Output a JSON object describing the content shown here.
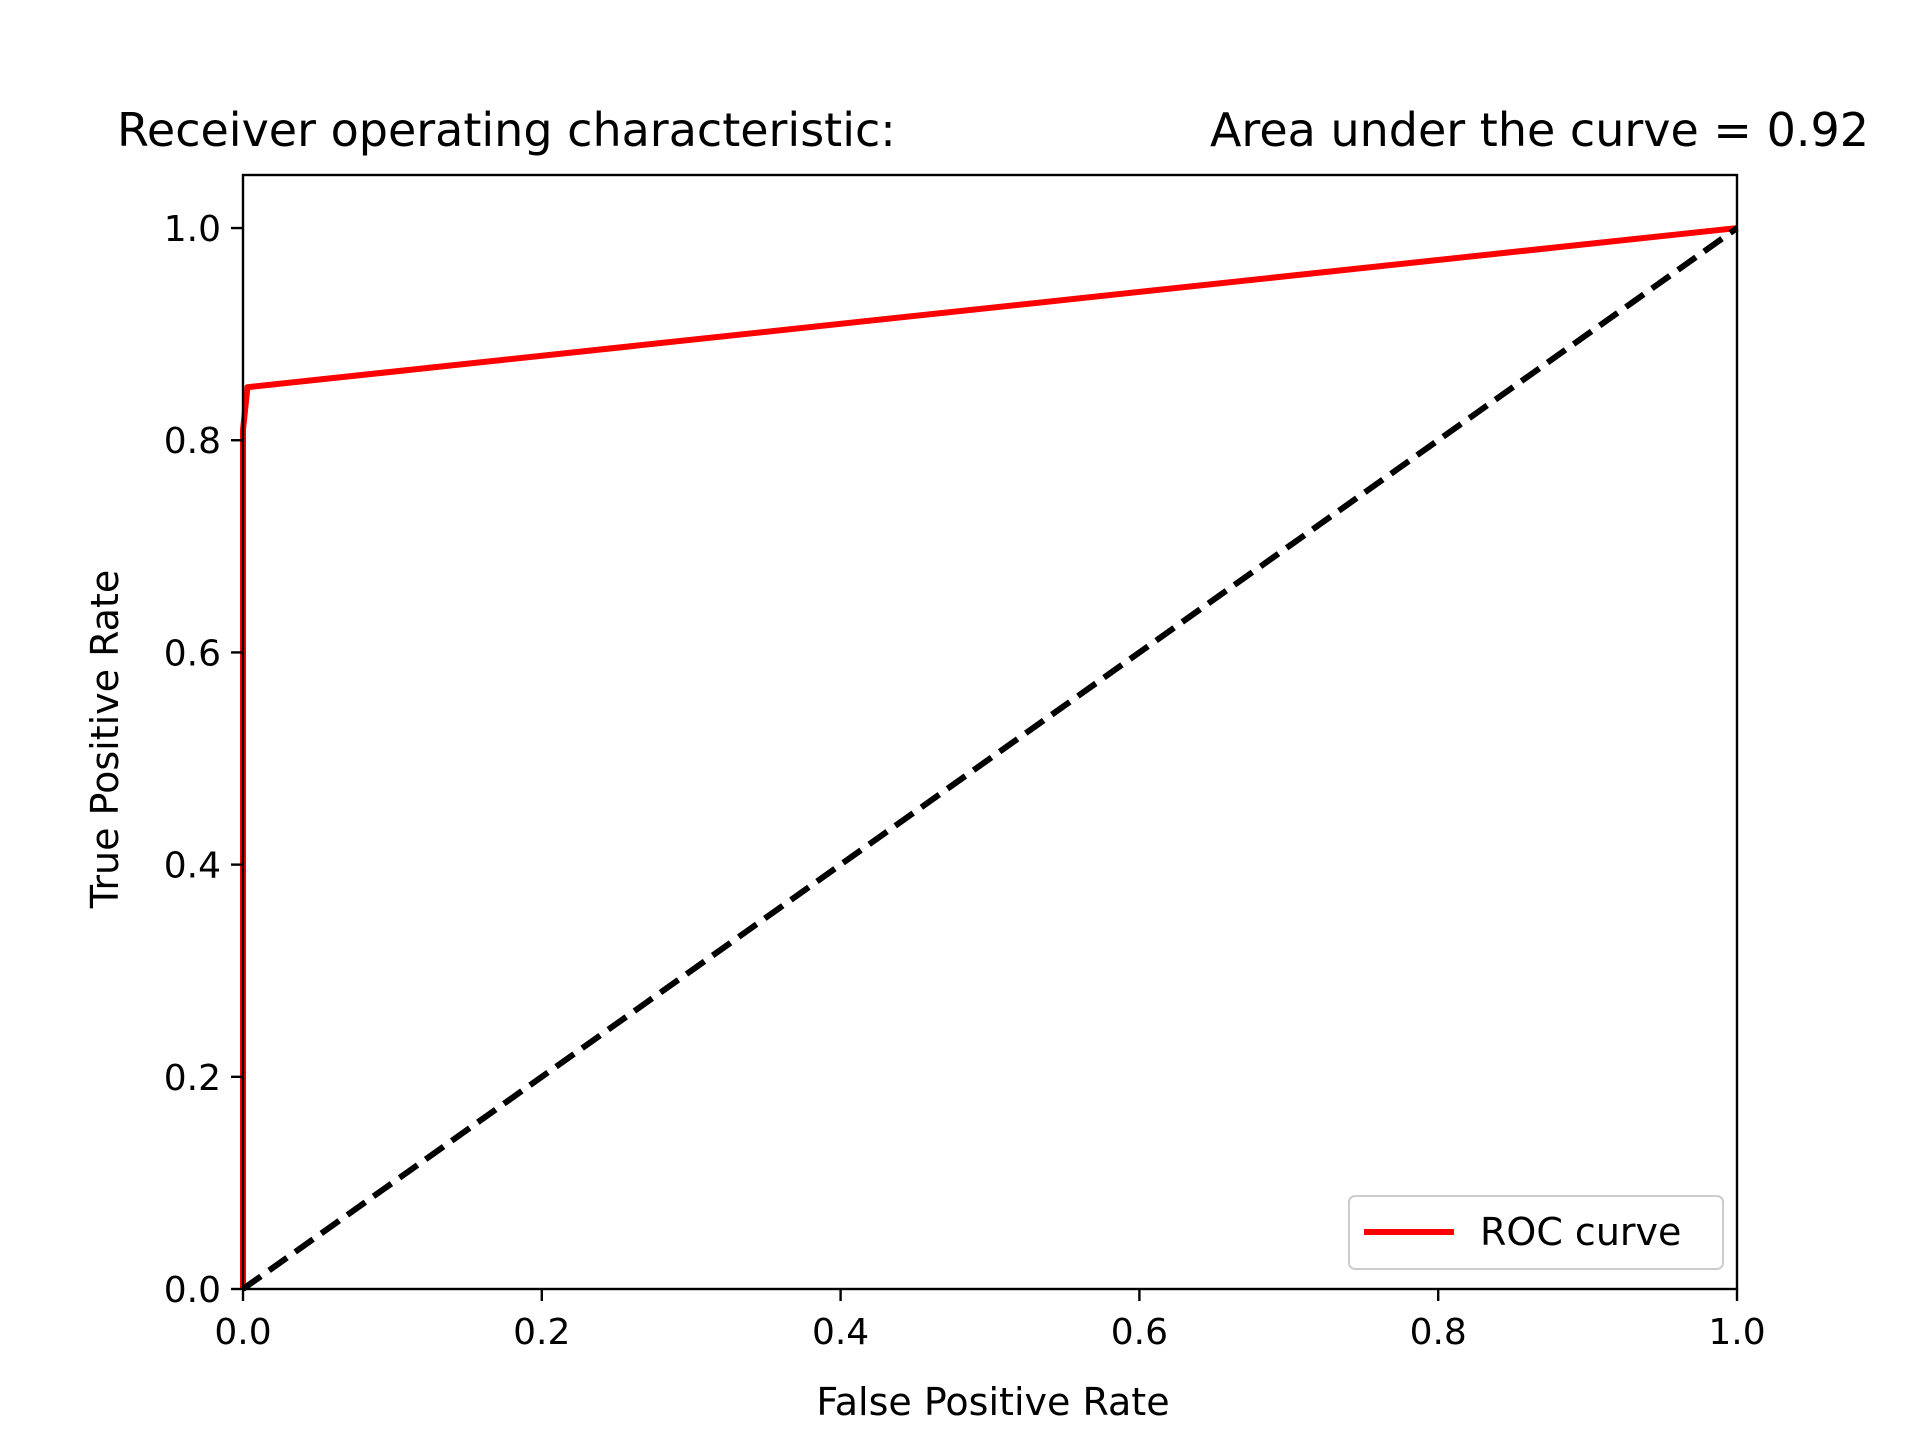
{
  "chart_data": {
    "type": "line",
    "title_left": "Receiver operating characteristic:",
    "title_right": "Area under the curve = 0.92",
    "xlabel": "False Positive Rate",
    "ylabel": "True Positive Rate",
    "xlim": [
      0.0,
      1.0
    ],
    "ylim": [
      -0.0,
      1.05
    ],
    "x_ticks": [
      "0.0",
      "0.2",
      "0.4",
      "0.6",
      "0.8",
      "1.0"
    ],
    "y_ticks": [
      "0.0",
      "0.2",
      "0.4",
      "0.6",
      "0.8",
      "1.0"
    ],
    "x_tick_values": [
      0.0,
      0.2,
      0.4,
      0.6,
      0.8,
      1.0
    ],
    "y_tick_values": [
      0.0,
      0.2,
      0.4,
      0.6,
      0.8,
      1.0
    ],
    "grid": false,
    "legend_position": "lower-right",
    "series": [
      {
        "name": "ROC curve",
        "color": "#ff0000",
        "style": "solid",
        "x": [
          0.0,
          0.0,
          0.003,
          1.0
        ],
        "y": [
          0.0,
          0.81,
          0.85,
          1.0
        ]
      },
      {
        "color": "#000000",
        "style": "dashed",
        "x": [
          0.0,
          1.0
        ],
        "y": [
          0.0,
          1.0
        ]
      }
    ]
  }
}
